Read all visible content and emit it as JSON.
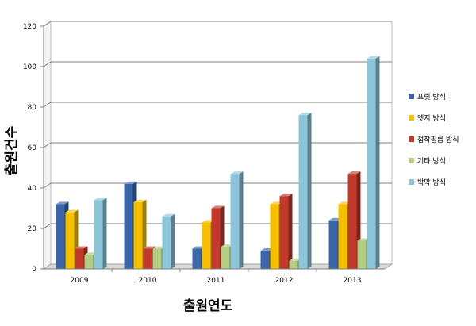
{
  "chart_data": {
    "type": "bar",
    "categories": [
      "2009",
      "2010",
      "2011",
      "2012",
      "2013"
    ],
    "series": [
      {
        "name": "프릿 방식",
        "values": [
          32,
          42,
          10,
          9,
          24
        ],
        "color": "#3b67a8"
      },
      {
        "name": "엣지 방식",
        "values": [
          28,
          33,
          23,
          32,
          32
        ],
        "color": "#f5c000"
      },
      {
        "name": "접착필름 방식",
        "values": [
          10,
          10,
          30,
          36,
          47
        ],
        "color": "#c0392b"
      },
      {
        "name": "기타 방식",
        "values": [
          7,
          10,
          11,
          4,
          14
        ],
        "color": "#b3cd83"
      },
      {
        "name": "박막 방식",
        "values": [
          34,
          26,
          47,
          76,
          104
        ],
        "color": "#8cc4d8"
      }
    ],
    "yticks": [
      "0",
      "20",
      "40",
      "60",
      "80",
      "100",
      "120"
    ],
    "ylim": [
      0,
      120
    ],
    "xlabel": "출원연도",
    "ylabel": "출원건수",
    "legend_position": "right",
    "grid": true,
    "style": "3d-clustered-column"
  }
}
